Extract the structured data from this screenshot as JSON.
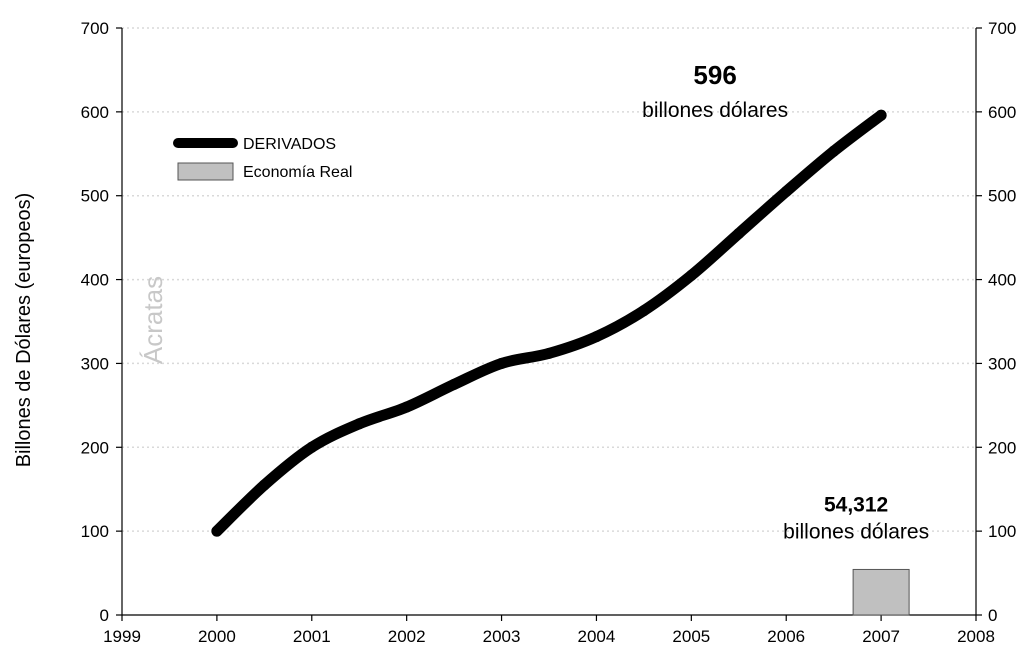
{
  "chart_data": {
    "type": "line",
    "xlabel": "",
    "ylabel": "Billones de Dólares (europeos)",
    "xlim": [
      1999,
      2008
    ],
    "ylim": [
      0,
      700
    ],
    "xticks": [
      "1999",
      "2000",
      "2001",
      "2002",
      "2003",
      "2004",
      "2005",
      "2006",
      "2007",
      "2008"
    ],
    "yticks_left": [
      "0",
      "100",
      "200",
      "300",
      "400",
      "500",
      "600",
      "700"
    ],
    "yticks_right": [
      "0",
      "100",
      "200",
      "300",
      "400",
      "500",
      "600",
      "700"
    ],
    "grid": true,
    "legend_position": "top-left",
    "series": [
      {
        "name": "DERIVADOS",
        "kind": "line",
        "color": "#000000",
        "x": [
          2000,
          2000.5,
          2001,
          2001.5,
          2002,
          2002.5,
          2003,
          2003.5,
          2004,
          2004.5,
          2005,
          2005.5,
          2006,
          2006.5,
          2007
        ],
        "y": [
          100,
          155,
          200,
          228,
          248,
          275,
          300,
          312,
          332,
          363,
          405,
          455,
          505,
          553,
          596
        ]
      },
      {
        "name": "Economía Real",
        "kind": "bar",
        "color": "#c0c0c0",
        "x": [
          2007
        ],
        "y": [
          54.312
        ]
      }
    ],
    "annotations": [
      {
        "value": "596",
        "unit": "billones dólares"
      },
      {
        "value": "54,312",
        "unit": "billones dólares"
      }
    ],
    "watermark": "Ácratas"
  }
}
